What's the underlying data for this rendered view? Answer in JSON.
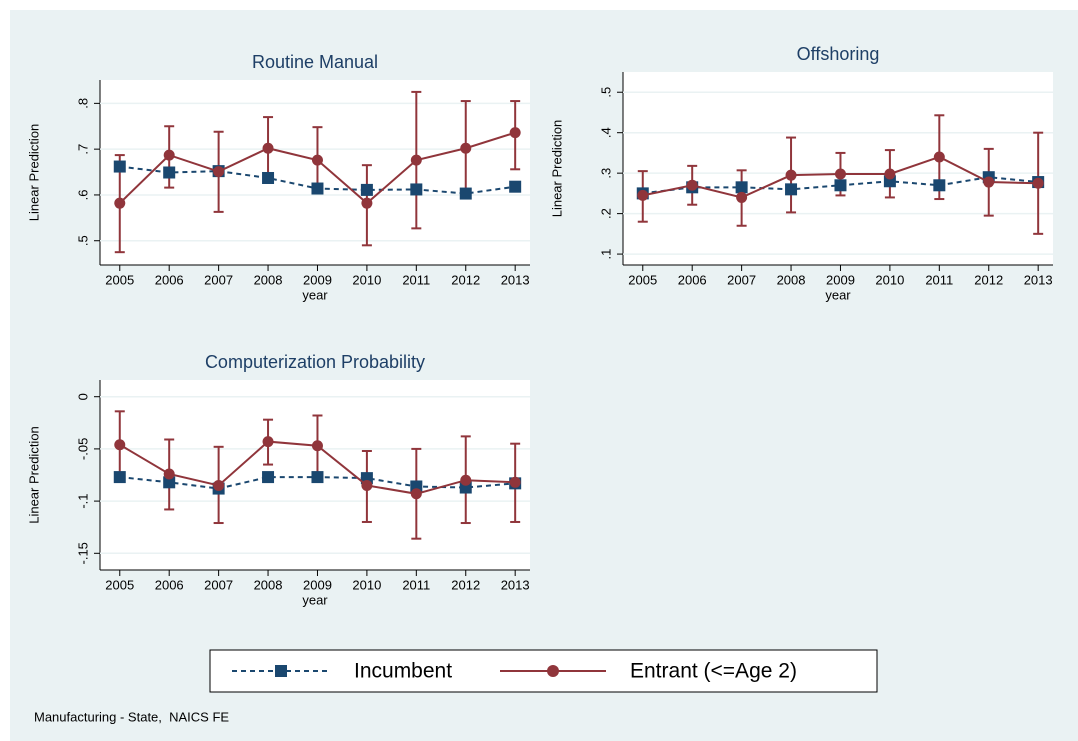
{
  "chart_data": [
    {
      "type": "line",
      "title": "Routine Manual",
      "xlabel": "year",
      "ylabel": "Linear Prediction",
      "x": [
        2005,
        2006,
        2007,
        2008,
        2009,
        2010,
        2011,
        2012,
        2013
      ],
      "xlim": [
        2004.6,
        2013.3
      ],
      "xticks": [
        2005,
        2006,
        2007,
        2008,
        2009,
        2010,
        2011,
        2012,
        2013
      ],
      "ylim": [
        0.447,
        0.851
      ],
      "yticks": [
        {
          "value": 0.5,
          "label": ".5"
        },
        {
          "value": 0.6,
          "label": ".6"
        },
        {
          "value": 0.7,
          "label": ".7"
        },
        {
          "value": 0.8,
          "label": ".8"
        }
      ],
      "grid": true,
      "series": [
        {
          "name": "Incumbent",
          "color": "#1a476f",
          "line_style": "dash",
          "marker": "square",
          "values": [
            0.662,
            0.649,
            0.652,
            0.637,
            0.614,
            0.611,
            0.612,
            0.603,
            0.618
          ]
        },
        {
          "name": "Entrant (<=Age 2)",
          "color": "#90353b",
          "line_style": "solid",
          "marker": "circle",
          "values": [
            0.582,
            0.687,
            0.651,
            0.702,
            0.676,
            0.582,
            0.676,
            0.702,
            0.736
          ],
          "ci_low": [
            0.475,
            0.616,
            0.563,
            0.637,
            0.612,
            0.49,
            0.527,
            0.605,
            0.656
          ],
          "ci_high": [
            0.687,
            0.75,
            0.738,
            0.77,
            0.748,
            0.665,
            0.825,
            0.805,
            0.805
          ]
        }
      ]
    },
    {
      "type": "line",
      "title": "Offshoring",
      "xlabel": "year",
      "ylabel": "Linear Prediction",
      "x": [
        2005,
        2006,
        2007,
        2008,
        2009,
        2010,
        2011,
        2012,
        2013
      ],
      "xlim": [
        2004.6,
        2013.3
      ],
      "xticks": [
        2005,
        2006,
        2007,
        2008,
        2009,
        2010,
        2011,
        2012,
        2013
      ],
      "ylim": [
        0.073,
        0.55
      ],
      "yticks": [
        {
          "value": 0.1,
          "label": ".1"
        },
        {
          "value": 0.2,
          "label": ".2"
        },
        {
          "value": 0.3,
          "label": ".3"
        },
        {
          "value": 0.4,
          "label": ".4"
        },
        {
          "value": 0.5,
          "label": ".5"
        }
      ],
      "grid": true,
      "series": [
        {
          "color": "#1a476f",
          "line_style": "dash",
          "marker": "square",
          "values": [
            0.25,
            0.265,
            0.265,
            0.26,
            0.27,
            0.28,
            0.27,
            0.29,
            0.278
          ]
        },
        {
          "color": "#90353b",
          "line_style": "solid",
          "marker": "circle",
          "values": [
            0.245,
            0.27,
            0.24,
            0.295,
            0.298,
            0.298,
            0.34,
            0.278,
            0.275
          ],
          "ci_low": [
            0.18,
            0.222,
            0.17,
            0.203,
            0.245,
            0.24,
            0.236,
            0.195,
            0.15
          ],
          "ci_high": [
            0.305,
            0.318,
            0.307,
            0.388,
            0.35,
            0.357,
            0.443,
            0.36,
            0.4
          ]
        }
      ]
    },
    {
      "type": "line",
      "title": "Computerization Probability",
      "xlabel": "year",
      "ylabel": "Linear Prediction",
      "x": [
        2005,
        2006,
        2007,
        2008,
        2009,
        2010,
        2011,
        2012,
        2013
      ],
      "xlim": [
        2004.6,
        2013.3
      ],
      "xticks": [
        2005,
        2006,
        2007,
        2008,
        2009,
        2010,
        2011,
        2012,
        2013
      ],
      "ylim": [
        -0.166,
        0.016
      ],
      "yticks": [
        {
          "value": -0.15,
          "label": "-.15"
        },
        {
          "value": -0.1,
          "label": "-.1"
        },
        {
          "value": -0.05,
          "label": "-.05"
        },
        0
      ],
      "grid": true,
      "series": [
        {
          "color": "#1a476f",
          "line_style": "dash",
          "marker": "square",
          "values": [
            -0.077,
            -0.082,
            -0.088,
            -0.077,
            -0.077,
            -0.078,
            -0.086,
            -0.087,
            -0.083
          ]
        },
        {
          "color": "#90353b",
          "line_style": "solid",
          "marker": "circle",
          "values": [
            -0.046,
            -0.074,
            -0.085,
            -0.043,
            -0.047,
            -0.085,
            -0.093,
            -0.08,
            -0.082
          ],
          "ci_low": [
            -0.077,
            -0.108,
            -0.121,
            -0.065,
            -0.077,
            -0.12,
            -0.136,
            -0.121,
            -0.12
          ],
          "ci_high": [
            -0.014,
            -0.041,
            -0.048,
            -0.022,
            -0.018,
            -0.052,
            -0.05,
            -0.038,
            -0.045
          ]
        }
      ]
    }
  ],
  "note": "Manufacturing - State,  NAICS FE"
}
